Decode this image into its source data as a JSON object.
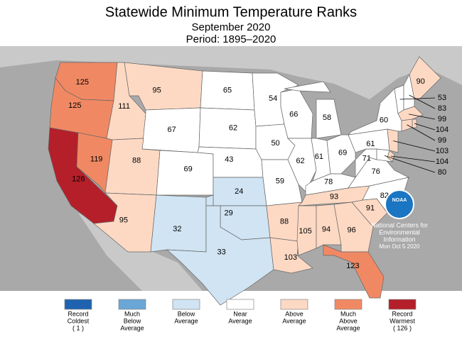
{
  "title": "Statewide Minimum Temperature Ranks",
  "subtitle": "September 2020",
  "period": "Period: 1895–2020",
  "states": [
    {
      "rank": 125,
      "color": "#f08963"
    },
    {
      "rank": 125,
      "color": "#f08963"
    },
    {
      "rank": 126,
      "color": "#b41f2a"
    },
    {
      "rank": 119,
      "color": "#f08963"
    },
    {
      "rank": 111,
      "color": "#fdd9c4"
    },
    {
      "rank": 95,
      "color": "#fdd9c4"
    },
    {
      "rank": 67,
      "color": "#ffffff"
    },
    {
      "rank": 88,
      "color": "#fdd9c4"
    },
    {
      "rank": 95,
      "color": "#fdd9c4"
    },
    {
      "rank": 69,
      "color": "#ffffff"
    },
    {
      "rank": 32,
      "color": "#d0e4f3"
    },
    {
      "rank": 65,
      "color": "#ffffff"
    },
    {
      "rank": 62,
      "color": "#ffffff"
    },
    {
      "rank": 43,
      "color": "#ffffff"
    },
    {
      "rank": 24,
      "color": "#d0e4f3"
    },
    {
      "rank": 29,
      "color": "#d0e4f3"
    },
    {
      "rank": 33,
      "color": "#d0e4f3"
    },
    {
      "rank": 54,
      "color": "#ffffff"
    },
    {
      "rank": 50,
      "color": "#ffffff"
    },
    {
      "rank": 59,
      "color": "#ffffff"
    },
    {
      "rank": 88,
      "color": "#fdd9c4"
    },
    {
      "rank": 103,
      "color": "#fdd9c4"
    },
    {
      "rank": 66,
      "color": "#ffffff"
    },
    {
      "rank": 62,
      "color": "#ffffff"
    },
    {
      "rank": 58,
      "color": "#ffffff"
    },
    {
      "rank": 61,
      "color": "#ffffff"
    },
    {
      "rank": 69,
      "color": "#ffffff"
    },
    {
      "rank": 78,
      "color": "#ffffff"
    },
    {
      "rank": 93,
      "color": "#fdd9c4"
    },
    {
      "rank": 105,
      "color": "#fdd9c4"
    },
    {
      "rank": 94,
      "color": "#fdd9c4"
    },
    {
      "rank": 96,
      "color": "#fdd9c4"
    },
    {
      "rank": 123,
      "color": "#f08963"
    },
    {
      "rank": 91,
      "color": "#fdd9c4"
    },
    {
      "rank": 82,
      "color": "#ffffff"
    },
    {
      "rank": 76,
      "color": "#ffffff"
    },
    {
      "rank": 71,
      "color": "#ffffff"
    },
    {
      "rank": 61,
      "color": "#ffffff"
    },
    {
      "rank": 60,
      "color": "#ffffff"
    },
    {
      "rank": 90,
      "color": "#fdd9c4"
    },
    {
      "rank": 53,
      "color": "#ffffff"
    },
    {
      "rank": 83,
      "color": "#ffffff"
    },
    {
      "rank": 99,
      "color": "#fdd9c4"
    },
    {
      "rank": 104,
      "color": "#fdd9c4"
    },
    {
      "rank": 99,
      "color": "#fdd9c4"
    },
    {
      "rank": 103,
      "color": "#fdd9c4"
    },
    {
      "rank": 104,
      "color": "#fdd9c4"
    },
    {
      "rank": 80,
      "color": "#ffffff"
    }
  ],
  "legend": [
    {
      "color": "#1f63b0",
      "lines": [
        "Record",
        "Coldest",
        "( 1 )"
      ]
    },
    {
      "color": "#6aa6d6",
      "lines": [
        "Much",
        "Below",
        "Average"
      ]
    },
    {
      "color": "#d0e4f3",
      "lines": [
        "Below",
        "Average"
      ]
    },
    {
      "color": "#ffffff",
      "lines": [
        "Near",
        "Average"
      ]
    },
    {
      "color": "#fdd9c4",
      "lines": [
        "Above",
        "Average"
      ]
    },
    {
      "color": "#f08963",
      "lines": [
        "Much",
        "Above",
        "Average"
      ]
    },
    {
      "color": "#b41f2a",
      "lines": [
        "Record",
        "Warmest",
        "( 126 )"
      ]
    }
  ],
  "logo": "NOAA",
  "credit": [
    "National Centers for",
    "Environmental",
    "Information",
    "Mon Oct  5 2020"
  ]
}
